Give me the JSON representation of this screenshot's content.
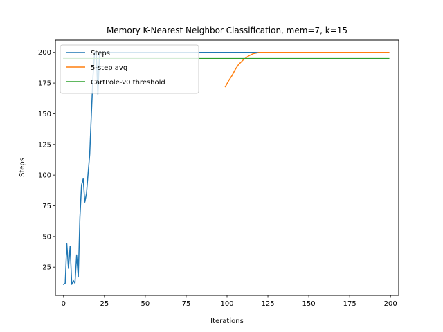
{
  "chart_data": {
    "type": "line",
    "title": "Memory K-Nearest Neighbor Classification, mem=7, k=15",
    "xlabel": "Iterations",
    "ylabel": "Steps",
    "xlim": [
      -5,
      205
    ],
    "ylim": [
      2,
      210
    ],
    "xticks": [
      0,
      25,
      50,
      75,
      100,
      125,
      150,
      175,
      200
    ],
    "yticks": [
      25,
      50,
      75,
      100,
      125,
      150,
      175,
      200
    ],
    "grid": false,
    "legend_position": "top-left",
    "series": [
      {
        "name": "Steps",
        "color": "#1f77b4",
        "points": [
          [
            0,
            11
          ],
          [
            1,
            12
          ],
          [
            2,
            44
          ],
          [
            3,
            24
          ],
          [
            4,
            42
          ],
          [
            5,
            11
          ],
          [
            6,
            14
          ],
          [
            7,
            12
          ],
          [
            8,
            35
          ],
          [
            9,
            17
          ],
          [
            10,
            65
          ],
          [
            11,
            92
          ],
          [
            12,
            97
          ],
          [
            13,
            78
          ],
          [
            14,
            85
          ],
          [
            15,
            101
          ],
          [
            16,
            117
          ],
          [
            17,
            150
          ],
          [
            18,
            180
          ],
          [
            19,
            200
          ],
          [
            20,
            200
          ],
          [
            21,
            166
          ],
          [
            22,
            200
          ],
          [
            23,
            200
          ],
          [
            25,
            200
          ],
          [
            50,
            200
          ],
          [
            75,
            200
          ],
          [
            100,
            200
          ],
          [
            125,
            200
          ],
          [
            150,
            200
          ],
          [
            175,
            200
          ],
          [
            199,
            200
          ]
        ]
      },
      {
        "name": "5-step avg",
        "color": "#ff7f0e",
        "points": [
          [
            99,
            172
          ],
          [
            101,
            177
          ],
          [
            103,
            181
          ],
          [
            105,
            186
          ],
          [
            107,
            190
          ],
          [
            110,
            194
          ],
          [
            113,
            197
          ],
          [
            116,
            199
          ],
          [
            120,
            200
          ],
          [
            150,
            200
          ],
          [
            199,
            200
          ]
        ]
      },
      {
        "name": "CartPole-v0 threshold",
        "color": "#2ca02c",
        "points": [
          [
            0,
            195
          ],
          [
            199,
            195
          ]
        ]
      }
    ]
  }
}
